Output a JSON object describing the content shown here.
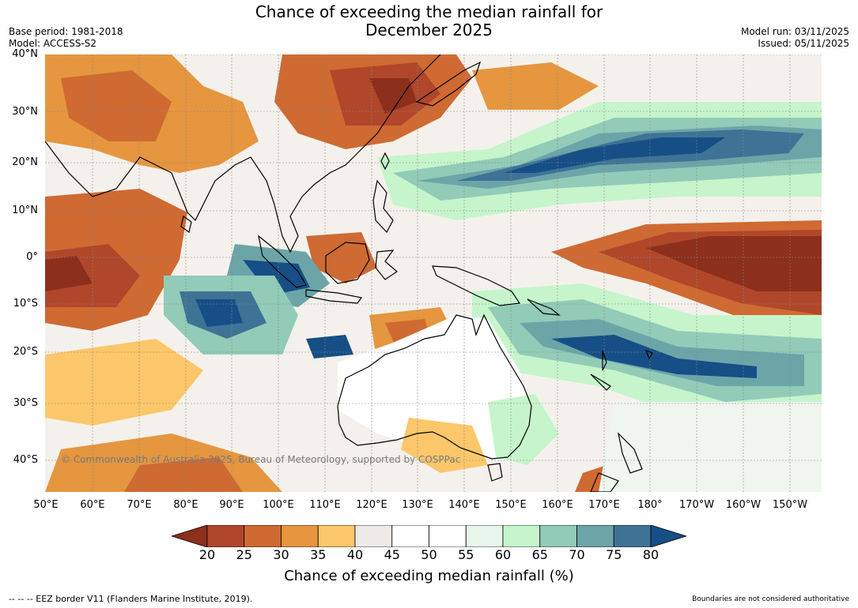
{
  "title": "Chance of exceeding the median rainfall for\nDecember 2025",
  "title_line1": "Chance of exceeding the median rainfall for",
  "title_line2": "December 2025",
  "base_period": "Base period: 1981-2018",
  "model": "Model: ACCESS-S2",
  "model_run": "Model run: 03/11/2025",
  "issued": "Issued: 05/11/2025",
  "lat_labels": [
    "40°N",
    "30°N",
    "20°N",
    "10°N",
    "0°",
    "10°S",
    "20°S",
    "30°S",
    "40°S"
  ],
  "lon_labels": [
    "50°E",
    "60°E",
    "70°E",
    "80°E",
    "90°E",
    "100°E",
    "110°E",
    "120°E",
    "130°E",
    "140°E",
    "150°E",
    "160°E",
    "170°E",
    "180°",
    "170°W",
    "160°W",
    "150°W"
  ],
  "colorbar": {
    "ticks": [
      "20",
      "25",
      "30",
      "35",
      "40",
      "45",
      "50",
      "55",
      "60",
      "65",
      "70",
      "75",
      "80"
    ],
    "colors": [
      "#8c2f1c",
      "#b0472a",
      "#cf6a32",
      "#e5963f",
      "#fbc76a",
      "#eeebe6",
      "#ffffff",
      "#ffffff",
      "#e8f5ea",
      "#c6f5cb",
      "#92cbb8",
      "#6ba5a8",
      "#3e7396",
      "#164f86"
    ],
    "label": "Chance of exceeding median rainfall (%)"
  },
  "copyright": "© Commonwealth of Australia 2025, Bureau of Meteorology, supported by COSPPac",
  "footer_left": "--  --  -- EEZ border V11 (Flanders Marine Institute, 2019).",
  "footer_right": "Boundaries are not considered authoritative"
}
